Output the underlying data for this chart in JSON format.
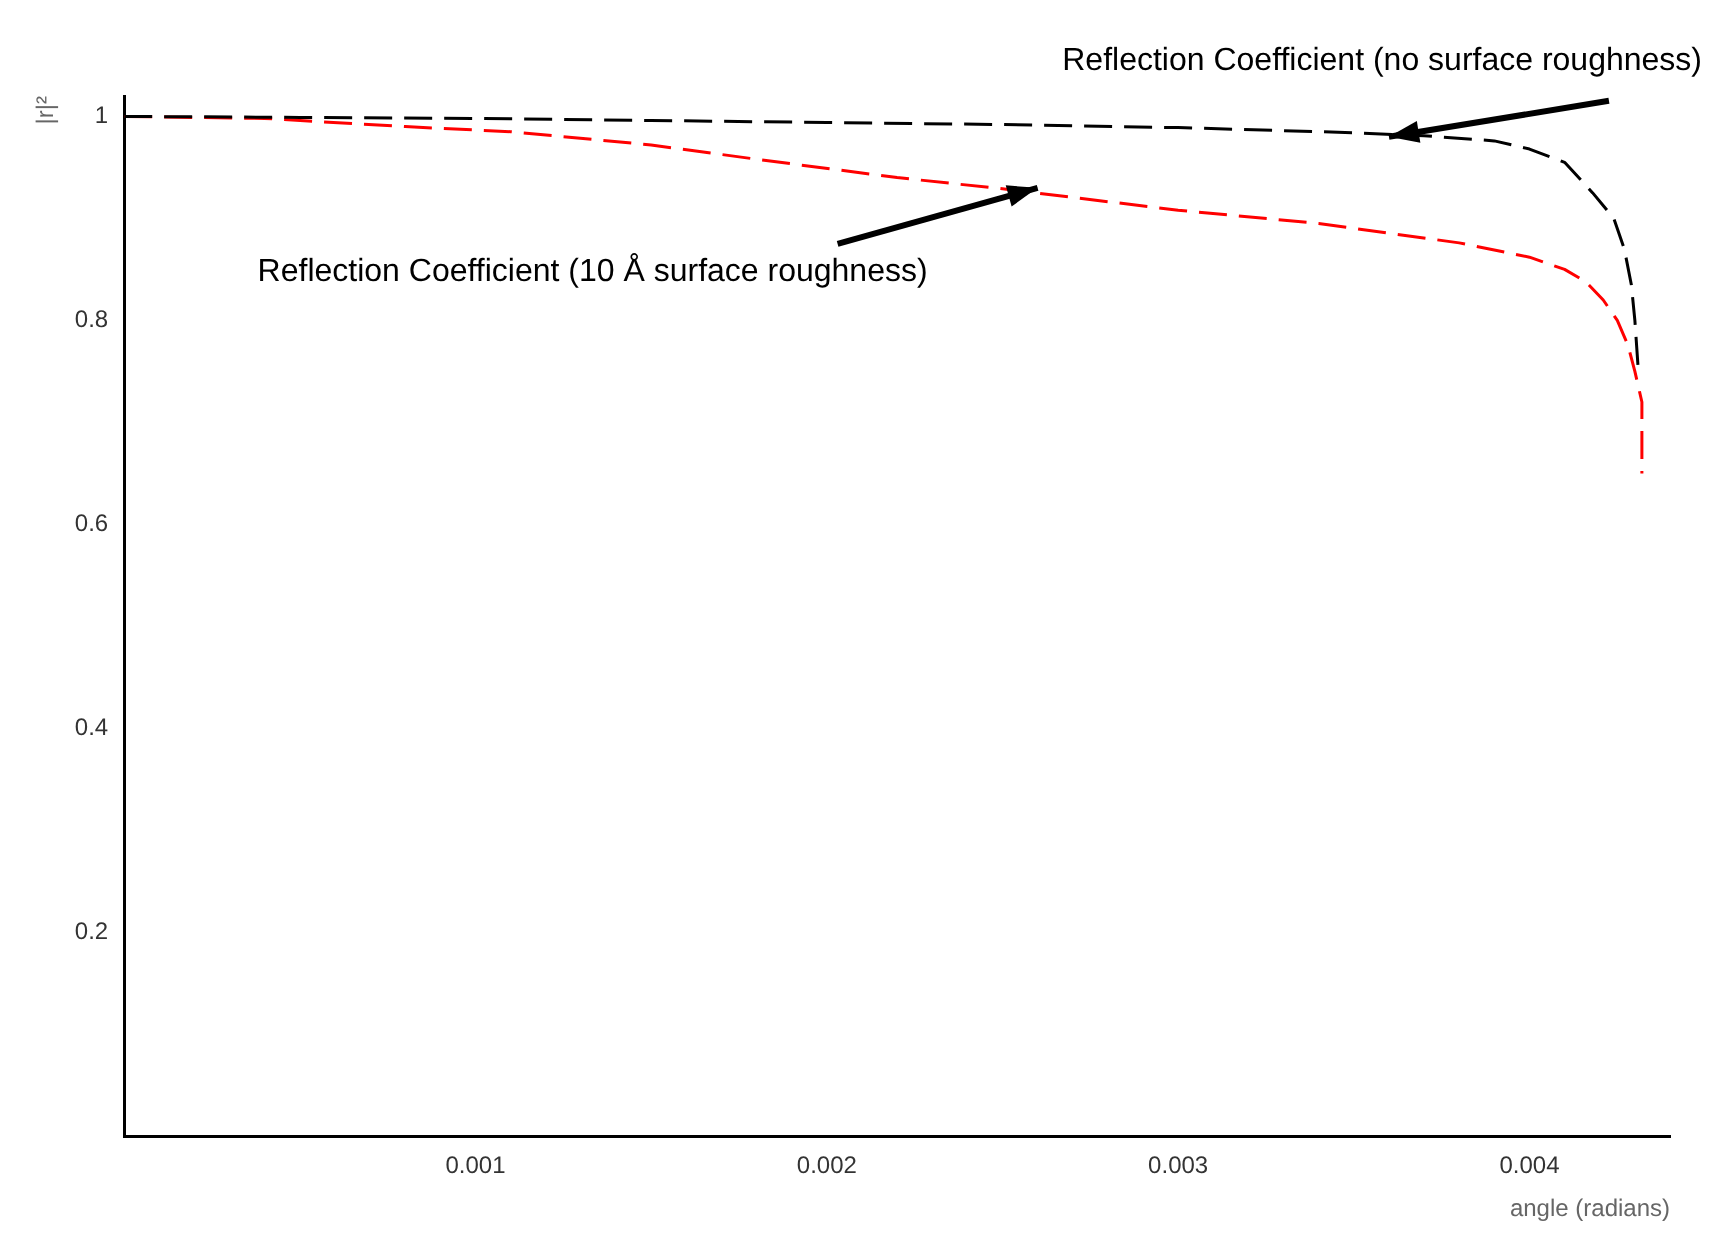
{
  "chart_data": {
    "type": "line",
    "xlabel": "angle (radians)",
    "ylabel": "|r|²",
    "xlim": [
      0,
      0.0044
    ],
    "xticks": [
      0.001,
      0.002,
      0.003,
      0.004
    ],
    "ylim": [
      0,
      1.02
    ],
    "yticks": [
      0.2,
      0.4,
      0.6,
      0.8,
      1
    ],
    "grid": false,
    "legend": false,
    "marker": "none",
    "series": [
      {
        "color": "#000000",
        "line_style": "dashed",
        "x": [
          0,
          0.0005,
          0.001,
          0.0015,
          0.002,
          0.0025,
          0.003,
          0.0035,
          0.0037,
          0.0039,
          0.004,
          0.0041,
          0.00418,
          0.00424,
          0.00427,
          0.00429,
          0.0043,
          0.00431
        ],
        "values": [
          1,
          0.999,
          0.998,
          0.996,
          0.994,
          0.992,
          0.989,
          0.984,
          0.981,
          0.976,
          0.968,
          0.955,
          0.925,
          0.9,
          0.87,
          0.835,
          0.8,
          0.75
        ]
      },
      {
        "color": "#ff0000",
        "line_style": "dashed",
        "x": [
          0,
          0.0004,
          0.0008,
          0.0011,
          0.0015,
          0.0018,
          0.0022,
          0.0025,
          0.003,
          0.0034,
          0.0038,
          0.004,
          0.0041,
          0.00416,
          0.00421,
          0.00425,
          0.00428,
          0.0043,
          0.00432,
          0.00432
        ],
        "values": [
          1,
          0.998,
          0.99,
          0.985,
          0.972,
          0.958,
          0.94,
          0.929,
          0.908,
          0.895,
          0.876,
          0.862,
          0.85,
          0.838,
          0.82,
          0.8,
          0.776,
          0.75,
          0.72,
          0.65
        ]
      }
    ],
    "annotations": [
      {
        "text": "Reflection Coefficient (no surface roughness)",
        "x": 0.0036,
        "y": 0.98
      },
      {
        "text": "Reflection Coefficient (10 Å surface roughness)",
        "x": 0.0026,
        "y": 0.93
      }
    ]
  }
}
